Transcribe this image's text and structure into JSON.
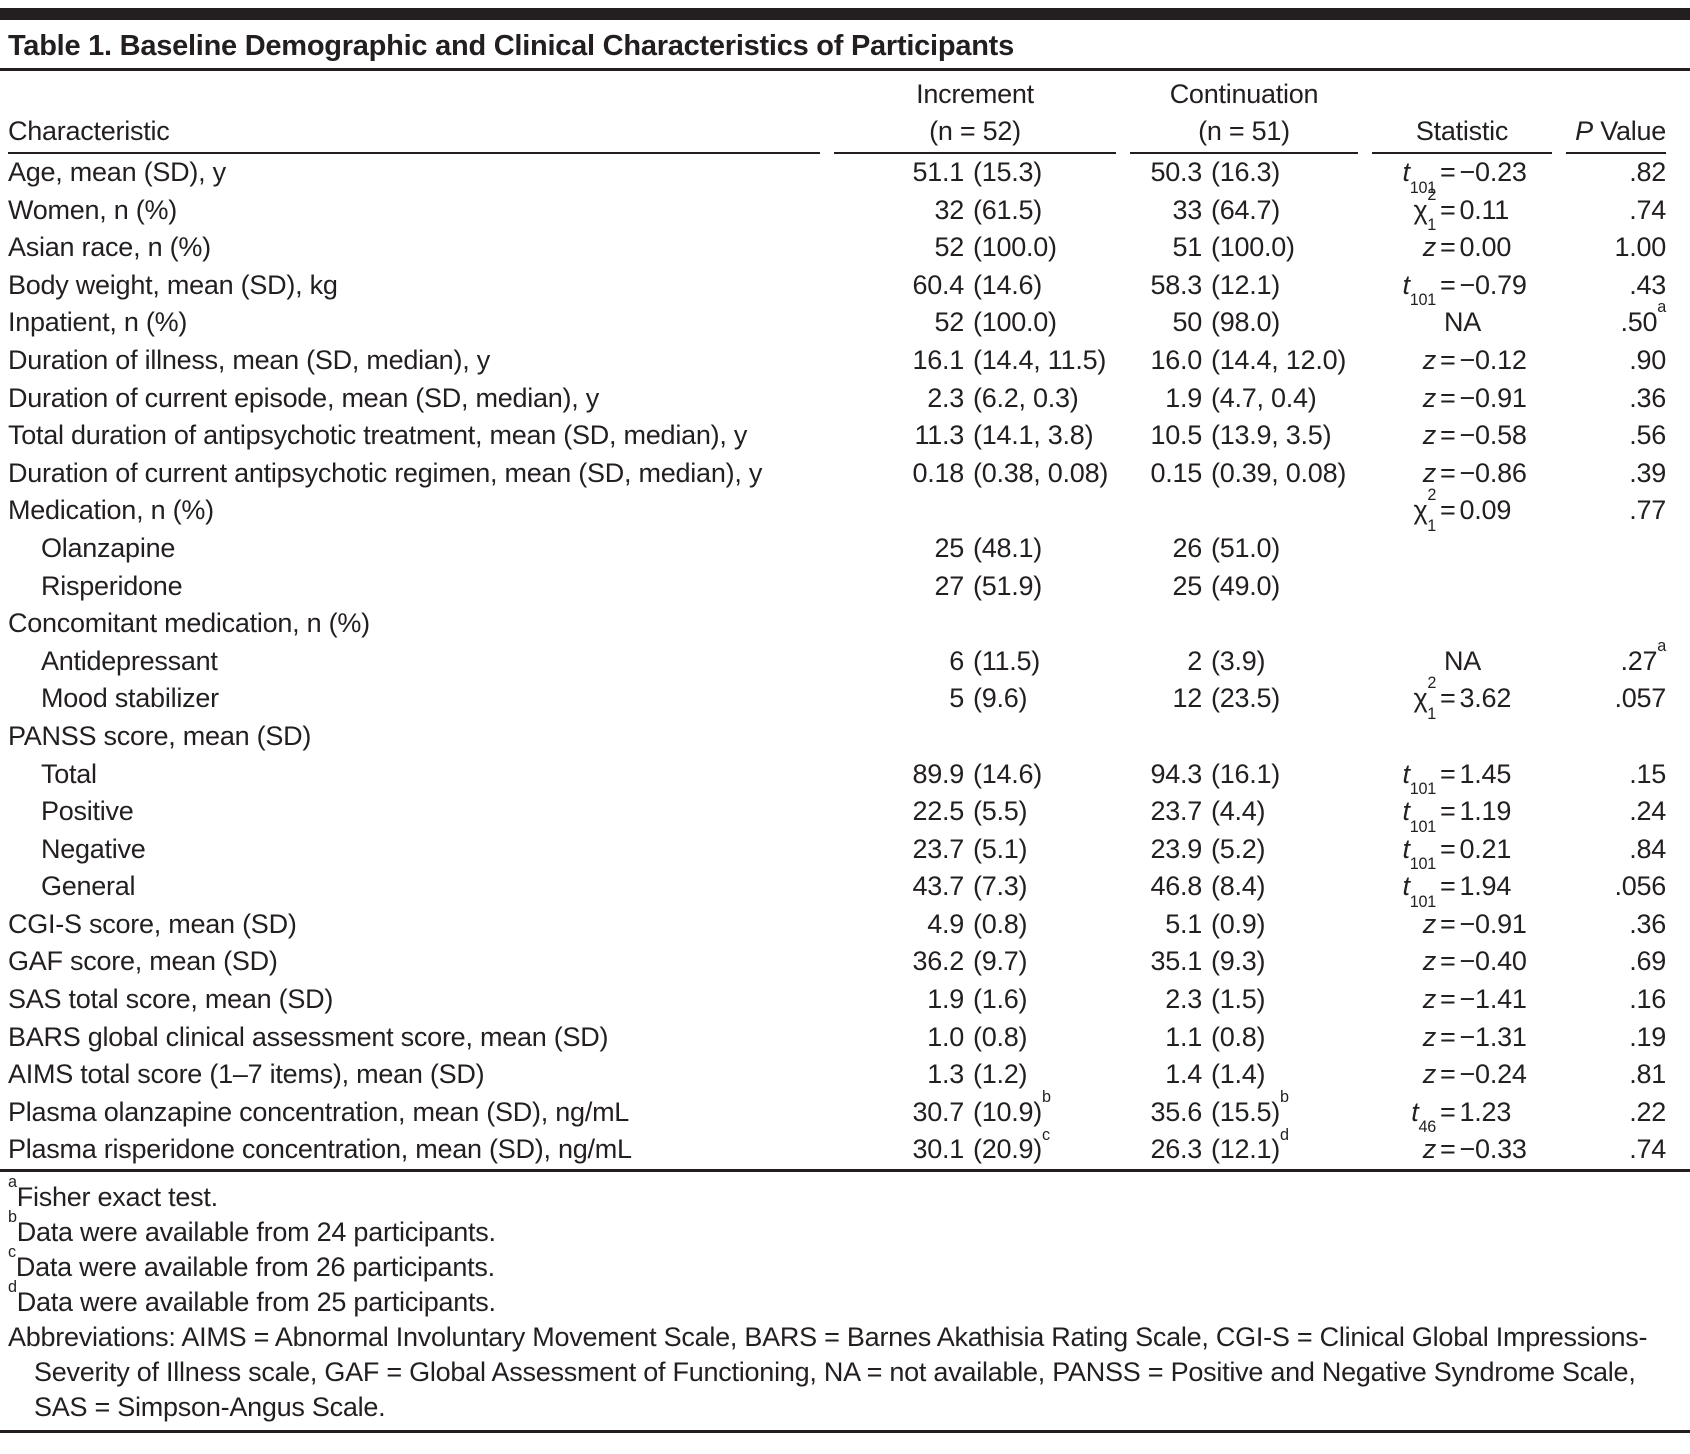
{
  "title": "Table 1. Baseline Demographic and Clinical Characteristics of Participants",
  "header": {
    "characteristic": "Characteristic",
    "increment_line1": "Increment",
    "increment_line2": "(n = 52)",
    "continuation_line1": "Continuation",
    "continuation_line2": "(n = 51)",
    "statistic": "Statistic",
    "p_italic": "P",
    "p_rest": " Value"
  },
  "table": {
    "rows": [
      {
        "label": "Age, mean (SD), y",
        "inc_num": "51.1",
        "inc_paren": "(15.3)",
        "con_num": "50.3",
        "con_paren": "(16.3)",
        "s_sym": "t",
        "s_sub": "101",
        "s_eq": "=",
        "s_val": "−0.23",
        "p": ".82"
      },
      {
        "label": "Women, n (%)",
        "inc_num": "32",
        "inc_paren": "(61.5)",
        "con_num": "33",
        "con_paren": "(64.7)",
        "s_chi": "χ",
        "s_sup": "2",
        "s_sub": "1",
        "s_eq": "=",
        "s_val": "0.11",
        "p": ".74"
      },
      {
        "label": "Asian race, n (%)",
        "inc_num": "52",
        "inc_paren": "(100.0)",
        "con_num": "51",
        "con_paren": "(100.0)",
        "s_sym": "z",
        "s_eq": "=",
        "s_val": "0.00",
        "p": "1.00"
      },
      {
        "label": "Body weight, mean (SD), kg",
        "inc_num": "60.4",
        "inc_paren": "(14.6)",
        "con_num": "58.3",
        "con_paren": "(12.1)",
        "s_sym": "t",
        "s_sub": "101",
        "s_eq": "=",
        "s_val": "−0.79",
        "p": ".43"
      },
      {
        "label": "Inpatient, n (%)",
        "inc_num": "52",
        "inc_paren": "(100.0)",
        "con_num": "50",
        "con_paren": "(98.0)",
        "s_val": "NA",
        "p": ".50",
        "p_sup": "a"
      },
      {
        "label": "Duration of illness, mean (SD, median), y",
        "inc_num": "16.1",
        "inc_paren": "(14.4, 11.5)",
        "con_num": "16.0",
        "con_paren": "(14.4, 12.0)",
        "s_sym": "z",
        "s_eq": "=",
        "s_val": "−0.12",
        "p": ".90"
      },
      {
        "label": "Duration of current episode, mean (SD, median), y",
        "inc_num": "2.3",
        "inc_paren": "(6.2, 0.3)",
        "con_num": "1.9",
        "con_paren": "(4.7, 0.4)",
        "s_sym": "z",
        "s_eq": "=",
        "s_val": "−0.91",
        "p": ".36"
      },
      {
        "label": "Total duration of antipsychotic treatment, mean (SD, median), y",
        "inc_num": "11.3",
        "inc_paren": "(14.1, 3.8)",
        "con_num": "10.5",
        "con_paren": "(13.9, 3.5)",
        "s_sym": "z",
        "s_eq": "=",
        "s_val": "−0.58",
        "p": ".56"
      },
      {
        "label": "Duration of current antipsychotic regimen, mean (SD, median), y",
        "inc_num": "0.18",
        "inc_paren": "(0.38, 0.08)",
        "con_num": "0.15",
        "con_paren": "(0.39, 0.08)",
        "s_sym": "z",
        "s_eq": "=",
        "s_val": "−0.86",
        "p": ".39"
      },
      {
        "label": "Medication, n (%)",
        "s_chi": "χ",
        "s_sup": "2",
        "s_sub": "1",
        "s_eq": "=",
        "s_val": "0.09",
        "p": ".77"
      },
      {
        "label": "Olanzapine",
        "level": 1,
        "inc_num": "25",
        "inc_paren": "(48.1)",
        "con_num": "26",
        "con_paren": "(51.0)"
      },
      {
        "label": "Risperidone",
        "level": 1,
        "inc_num": "27",
        "inc_paren": "(51.9)",
        "con_num": "25",
        "con_paren": "(49.0)"
      },
      {
        "label": "Concomitant medication, n (%)"
      },
      {
        "label": "Antidepressant",
        "level": 1,
        "inc_num": "6",
        "inc_paren": "(11.5)",
        "con_num": "2",
        "con_paren": "(3.9)",
        "s_val": "NA",
        "p": ".27",
        "p_sup": "a"
      },
      {
        "label": "Mood stabilizer",
        "level": 1,
        "inc_num": "5",
        "inc_paren": "(9.6)",
        "con_num": "12",
        "con_paren": "(23.5)",
        "s_chi": "χ",
        "s_sup": "2",
        "s_sub": "1",
        "s_eq": "=",
        "s_val": "3.62",
        "p": ".057"
      },
      {
        "label": "PANSS score, mean (SD)"
      },
      {
        "label": "Total",
        "level": 1,
        "inc_num": "89.9",
        "inc_paren": "(14.6)",
        "con_num": "94.3",
        "con_paren": "(16.1)",
        "s_sym": "t",
        "s_sub": "101",
        "s_eq": "=",
        "s_val": "1.45",
        "p": ".15"
      },
      {
        "label": "Positive",
        "level": 1,
        "inc_num": "22.5",
        "inc_paren": "(5.5)",
        "con_num": "23.7",
        "con_paren": "(4.4)",
        "s_sym": "t",
        "s_sub": "101",
        "s_eq": "=",
        "s_val": "1.19",
        "p": ".24"
      },
      {
        "label": "Negative",
        "level": 1,
        "inc_num": "23.7",
        "inc_paren": "(5.1)",
        "con_num": "23.9",
        "con_paren": "(5.2)",
        "s_sym": "t",
        "s_sub": "101",
        "s_eq": "=",
        "s_val": "0.21",
        "p": ".84"
      },
      {
        "label": "General",
        "level": 1,
        "inc_num": "43.7",
        "inc_paren": "(7.3)",
        "con_num": "46.8",
        "con_paren": "(8.4)",
        "s_sym": "t",
        "s_sub": "101",
        "s_eq": "=",
        "s_val": "1.94",
        "p": ".056"
      },
      {
        "label": "CGI-S score, mean (SD)",
        "inc_num": "4.9",
        "inc_paren": "(0.8)",
        "con_num": "5.1",
        "con_paren": "(0.9)",
        "s_sym": "z",
        "s_eq": "=",
        "s_val": "−0.91",
        "p": ".36"
      },
      {
        "label": "GAF score, mean (SD)",
        "inc_num": "36.2",
        "inc_paren": "(9.7)",
        "con_num": "35.1",
        "con_paren": "(9.3)",
        "s_sym": "z",
        "s_eq": "=",
        "s_val": "−0.40",
        "p": ".69"
      },
      {
        "label": "SAS total score, mean (SD)",
        "inc_num": "1.9",
        "inc_paren": "(1.6)",
        "con_num": "2.3",
        "con_paren": "(1.5)",
        "s_sym": "z",
        "s_eq": "=",
        "s_val": "−1.41",
        "p": ".16"
      },
      {
        "label": "BARS global clinical assessment score, mean (SD)",
        "inc_num": "1.0",
        "inc_paren": "(0.8)",
        "con_num": "1.1",
        "con_paren": "(0.8)",
        "s_sym": "z",
        "s_eq": "=",
        "s_val": "−1.31",
        "p": ".19"
      },
      {
        "label": "AIMS total score (1–7 items), mean (SD)",
        "inc_num": "1.3",
        "inc_paren": "(1.2)",
        "con_num": "1.4",
        "con_paren": "(1.4)",
        "s_sym": "z",
        "s_eq": "=",
        "s_val": "−0.24",
        "p": ".81"
      },
      {
        "label": "Plasma olanzapine concentration, mean (SD), ng/mL",
        "inc_num": "30.7",
        "inc_paren": "(10.9)",
        "inc_sup": "b",
        "con_num": "35.6",
        "con_paren": "(15.5)",
        "con_sup": "b",
        "s_sym": "t",
        "s_sub": "46",
        "s_eq": "=",
        "s_val": "1.23",
        "p": ".22"
      },
      {
        "label": "Plasma risperidone concentration, mean (SD), ng/mL",
        "inc_num": "30.1",
        "inc_paren": "(20.9)",
        "inc_sup": "c",
        "con_num": "26.3",
        "con_paren": "(12.1)",
        "con_sup": "d",
        "s_sym": "z",
        "s_eq": "=",
        "s_val": "−0.33",
        "p": ".74"
      }
    ]
  },
  "footnotes": [
    {
      "marker": "a",
      "text": "Fisher exact test."
    },
    {
      "marker": "b",
      "text": "Data were available from 24 participants."
    },
    {
      "marker": "c",
      "text": "Data were available from 26 participants."
    },
    {
      "marker": "d",
      "text": "Data were available from 25 participants."
    }
  ],
  "abbreviations": "Abbreviations: AIMS = Abnormal Involuntary Movement Scale, BARS = Barnes Akathisia Rating Scale, CGI-S = Clinical Global Impressions-Severity of Illness scale, GAF = Global Assessment of Functioning, NA = not available, PANSS = Positive and Negative Syndrome Scale, SAS = Simpson-Angus Scale.",
  "colors": {
    "text": "#231f20",
    "rule": "#231f20",
    "background": "#ffffff"
  }
}
